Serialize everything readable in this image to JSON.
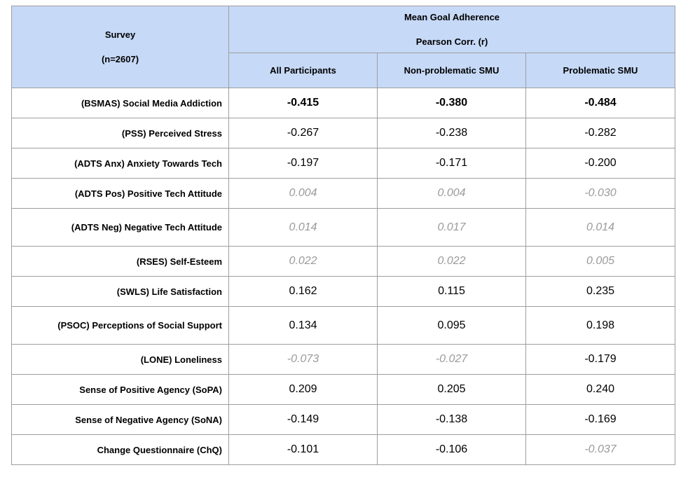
{
  "header": {
    "survey_label": "Survey",
    "n_label": "(n=2607)",
    "group_title": "Mean Goal Adherence",
    "group_subtitle": "Pearson Corr. (r)",
    "columns": [
      "All Participants",
      "Non-problematic SMU",
      "Problematic SMU"
    ]
  },
  "rows": [
    {
      "label": "(BSMAS) Social Media Addiction",
      "values": [
        "-0.415",
        "-0.380",
        "-0.484"
      ],
      "style": [
        "bold",
        "bold",
        "bold"
      ]
    },
    {
      "label": "(PSS) Perceived Stress",
      "values": [
        "-0.267",
        "-0.238",
        "-0.282"
      ],
      "style": [
        "normal",
        "normal",
        "normal"
      ]
    },
    {
      "label": "(ADTS Anx) Anxiety Towards Tech",
      "values": [
        "-0.197",
        "-0.171",
        "-0.200"
      ],
      "style": [
        "normal",
        "normal",
        "normal"
      ]
    },
    {
      "label": "(ADTS Pos) Positive Tech Attitude",
      "values": [
        "0.004",
        "0.004",
        "-0.030"
      ],
      "style": [
        "ns",
        "ns",
        "ns"
      ]
    },
    {
      "label": "(ADTS Neg) Negative Tech Attitude",
      "values": [
        "0.014",
        "0.017",
        "0.014"
      ],
      "style": [
        "ns",
        "ns",
        "ns"
      ]
    },
    {
      "label": "(RSES) Self-Esteem",
      "values": [
        "0.022",
        "0.022",
        "0.005"
      ],
      "style": [
        "ns",
        "ns",
        "ns"
      ]
    },
    {
      "label": "(SWLS) Life Satisfaction",
      "values": [
        "0.162",
        "0.115",
        "0.235"
      ],
      "style": [
        "normal",
        "normal",
        "normal"
      ]
    },
    {
      "label": "(PSOC) Perceptions of Social Support",
      "values": [
        "0.134",
        "0.095",
        "0.198"
      ],
      "style": [
        "normal",
        "normal",
        "normal"
      ]
    },
    {
      "label": "(LONE) Loneliness",
      "values": [
        "-0.073",
        "-0.027",
        "-0.179"
      ],
      "style": [
        "ns",
        "ns",
        "normal"
      ]
    },
    {
      "label": "Sense of Positive Agency (SoPA)",
      "values": [
        "0.209",
        "0.205",
        "0.240"
      ],
      "style": [
        "normal",
        "normal",
        "normal"
      ]
    },
    {
      "label": "Sense of Negative Agency (SoNA)",
      "values": [
        "-0.149",
        "-0.138",
        "-0.169"
      ],
      "style": [
        "normal",
        "normal",
        "normal"
      ]
    },
    {
      "label": "Change Questionnaire (ChQ)",
      "values": [
        "-0.101",
        "-0.106",
        "-0.037"
      ],
      "style": [
        "normal",
        "normal",
        "ns"
      ]
    }
  ],
  "colors": {
    "header_bg": "#c6d9f7",
    "border": "#9e9e9e",
    "not_significant_text": "#9a9a9a"
  }
}
